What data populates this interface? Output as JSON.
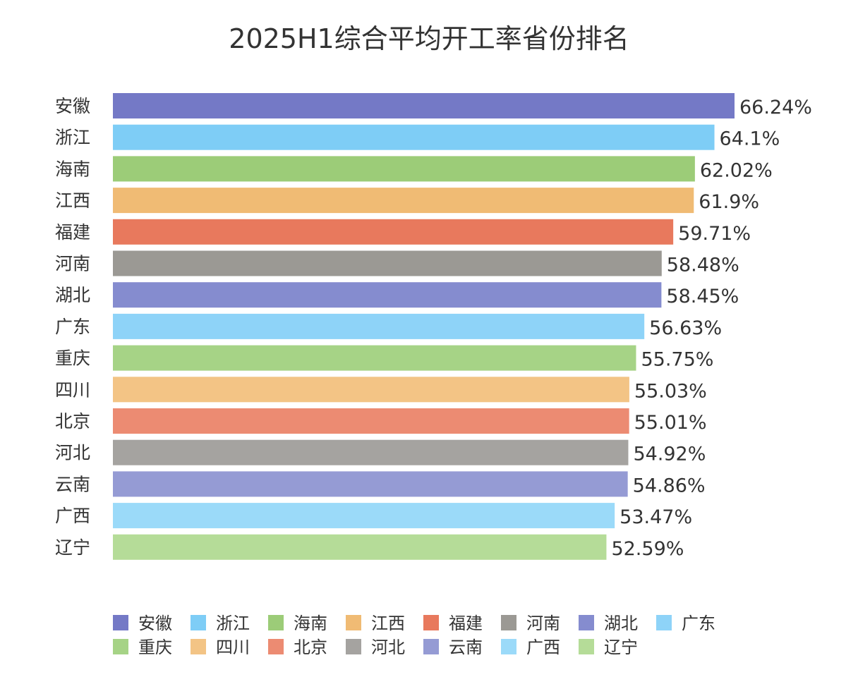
{
  "chart_data": {
    "type": "bar",
    "orientation": "horizontal",
    "title": "2025H1综合平均开工率省份排名",
    "xlabel": "",
    "ylabel": "",
    "xlim": [
      0,
      66.24
    ],
    "grid": false,
    "legend_position": "bottom",
    "categories": [
      "安徽",
      "浙江",
      "海南",
      "江西",
      "福建",
      "河南",
      "湖北",
      "广东",
      "重庆",
      "四川",
      "北京",
      "河北",
      "云南",
      "广西",
      "辽宁"
    ],
    "values": [
      66.24,
      64.1,
      62.02,
      61.9,
      59.71,
      58.48,
      58.45,
      56.63,
      55.75,
      55.03,
      55.01,
      54.92,
      54.86,
      53.47,
      52.59
    ],
    "value_labels": [
      "66.24%",
      "64.1%",
      "62.02%",
      "61.9%",
      "59.71%",
      "58.48%",
      "58.45%",
      "56.63%",
      "55.75%",
      "55.03%",
      "55.01%",
      "54.92%",
      "54.86%",
      "53.47%",
      "52.59%"
    ],
    "colors": [
      "#7479c6",
      "#7ecdf6",
      "#9ccc78",
      "#f0bb74",
      "#e8795d",
      "#9b9994",
      "#858ccf",
      "#8ed3f8",
      "#a6d386",
      "#f3c485",
      "#ec8b72",
      "#a5a3a0",
      "#959bd4",
      "#9bdaf9",
      "#b5dc98"
    ]
  }
}
